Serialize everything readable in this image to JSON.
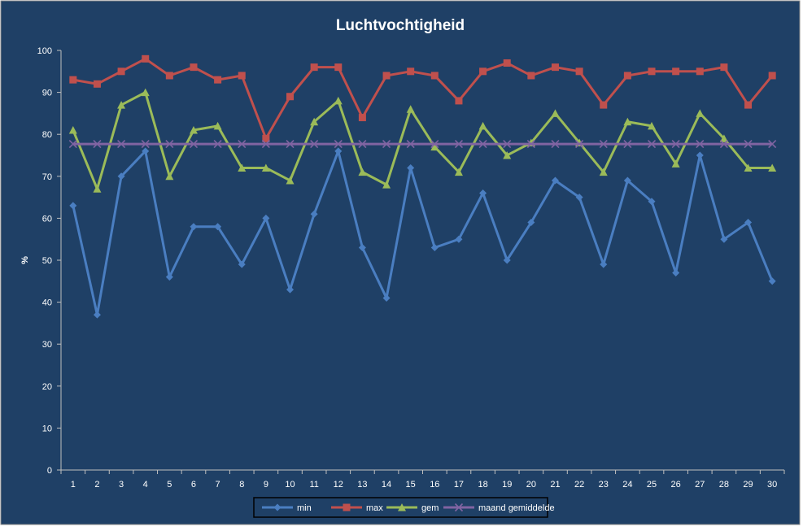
{
  "chart_data": {
    "type": "line",
    "title": "Luchtvochtigheid",
    "ylabel": "%",
    "xlabel": "",
    "ylim": [
      0,
      100
    ],
    "y_ticks": [
      0,
      10,
      20,
      30,
      40,
      50,
      60,
      70,
      80,
      90,
      100
    ],
    "categories": [
      "1",
      "2",
      "3",
      "4",
      "5",
      "6",
      "7",
      "8",
      "9",
      "10",
      "11",
      "12",
      "13",
      "14",
      "15",
      "16",
      "17",
      "18",
      "19",
      "20",
      "21",
      "22",
      "23",
      "24",
      "25",
      "26",
      "27",
      "28",
      "29",
      "30"
    ],
    "grid": false,
    "legend_position": "bottom",
    "background": "#1f4066",
    "series": [
      {
        "name": "min",
        "color": "#4a7ec1",
        "marker": "diamond",
        "values": [
          63,
          37,
          70,
          76,
          46,
          58,
          58,
          49,
          60,
          43,
          61,
          76,
          53,
          41,
          72,
          53,
          55,
          66,
          50,
          59,
          69,
          65,
          49,
          69,
          64,
          47,
          75,
          55,
          59,
          45
        ]
      },
      {
        "name": "max",
        "color": "#c0504d",
        "marker": "square",
        "values": [
          93,
          92,
          95,
          98,
          94,
          96,
          93,
          94,
          79,
          89,
          96,
          96,
          84,
          94,
          95,
          94,
          88,
          95,
          97,
          94,
          96,
          95,
          87,
          94,
          95,
          95,
          95,
          96,
          87,
          94
        ]
      },
      {
        "name": "gem",
        "color": "#9bbb59",
        "marker": "triangle",
        "values": [
          81,
          67,
          87,
          90,
          70,
          81,
          82,
          72,
          72,
          69,
          83,
          88,
          71,
          68,
          86,
          77,
          71,
          82,
          75,
          78,
          85,
          78,
          71,
          83,
          82,
          73,
          85,
          79,
          72,
          72
        ]
      },
      {
        "name": "maand gemiddelde",
        "color": "#8064a2",
        "marker": "x",
        "values": [
          77.7,
          77.7,
          77.7,
          77.7,
          77.7,
          77.7,
          77.7,
          77.7,
          77.7,
          77.7,
          77.7,
          77.7,
          77.7,
          77.7,
          77.7,
          77.7,
          77.7,
          77.7,
          77.7,
          77.7,
          77.7,
          77.7,
          77.7,
          77.7,
          77.7,
          77.7,
          77.7,
          77.7,
          77.7,
          77.7
        ]
      }
    ]
  }
}
